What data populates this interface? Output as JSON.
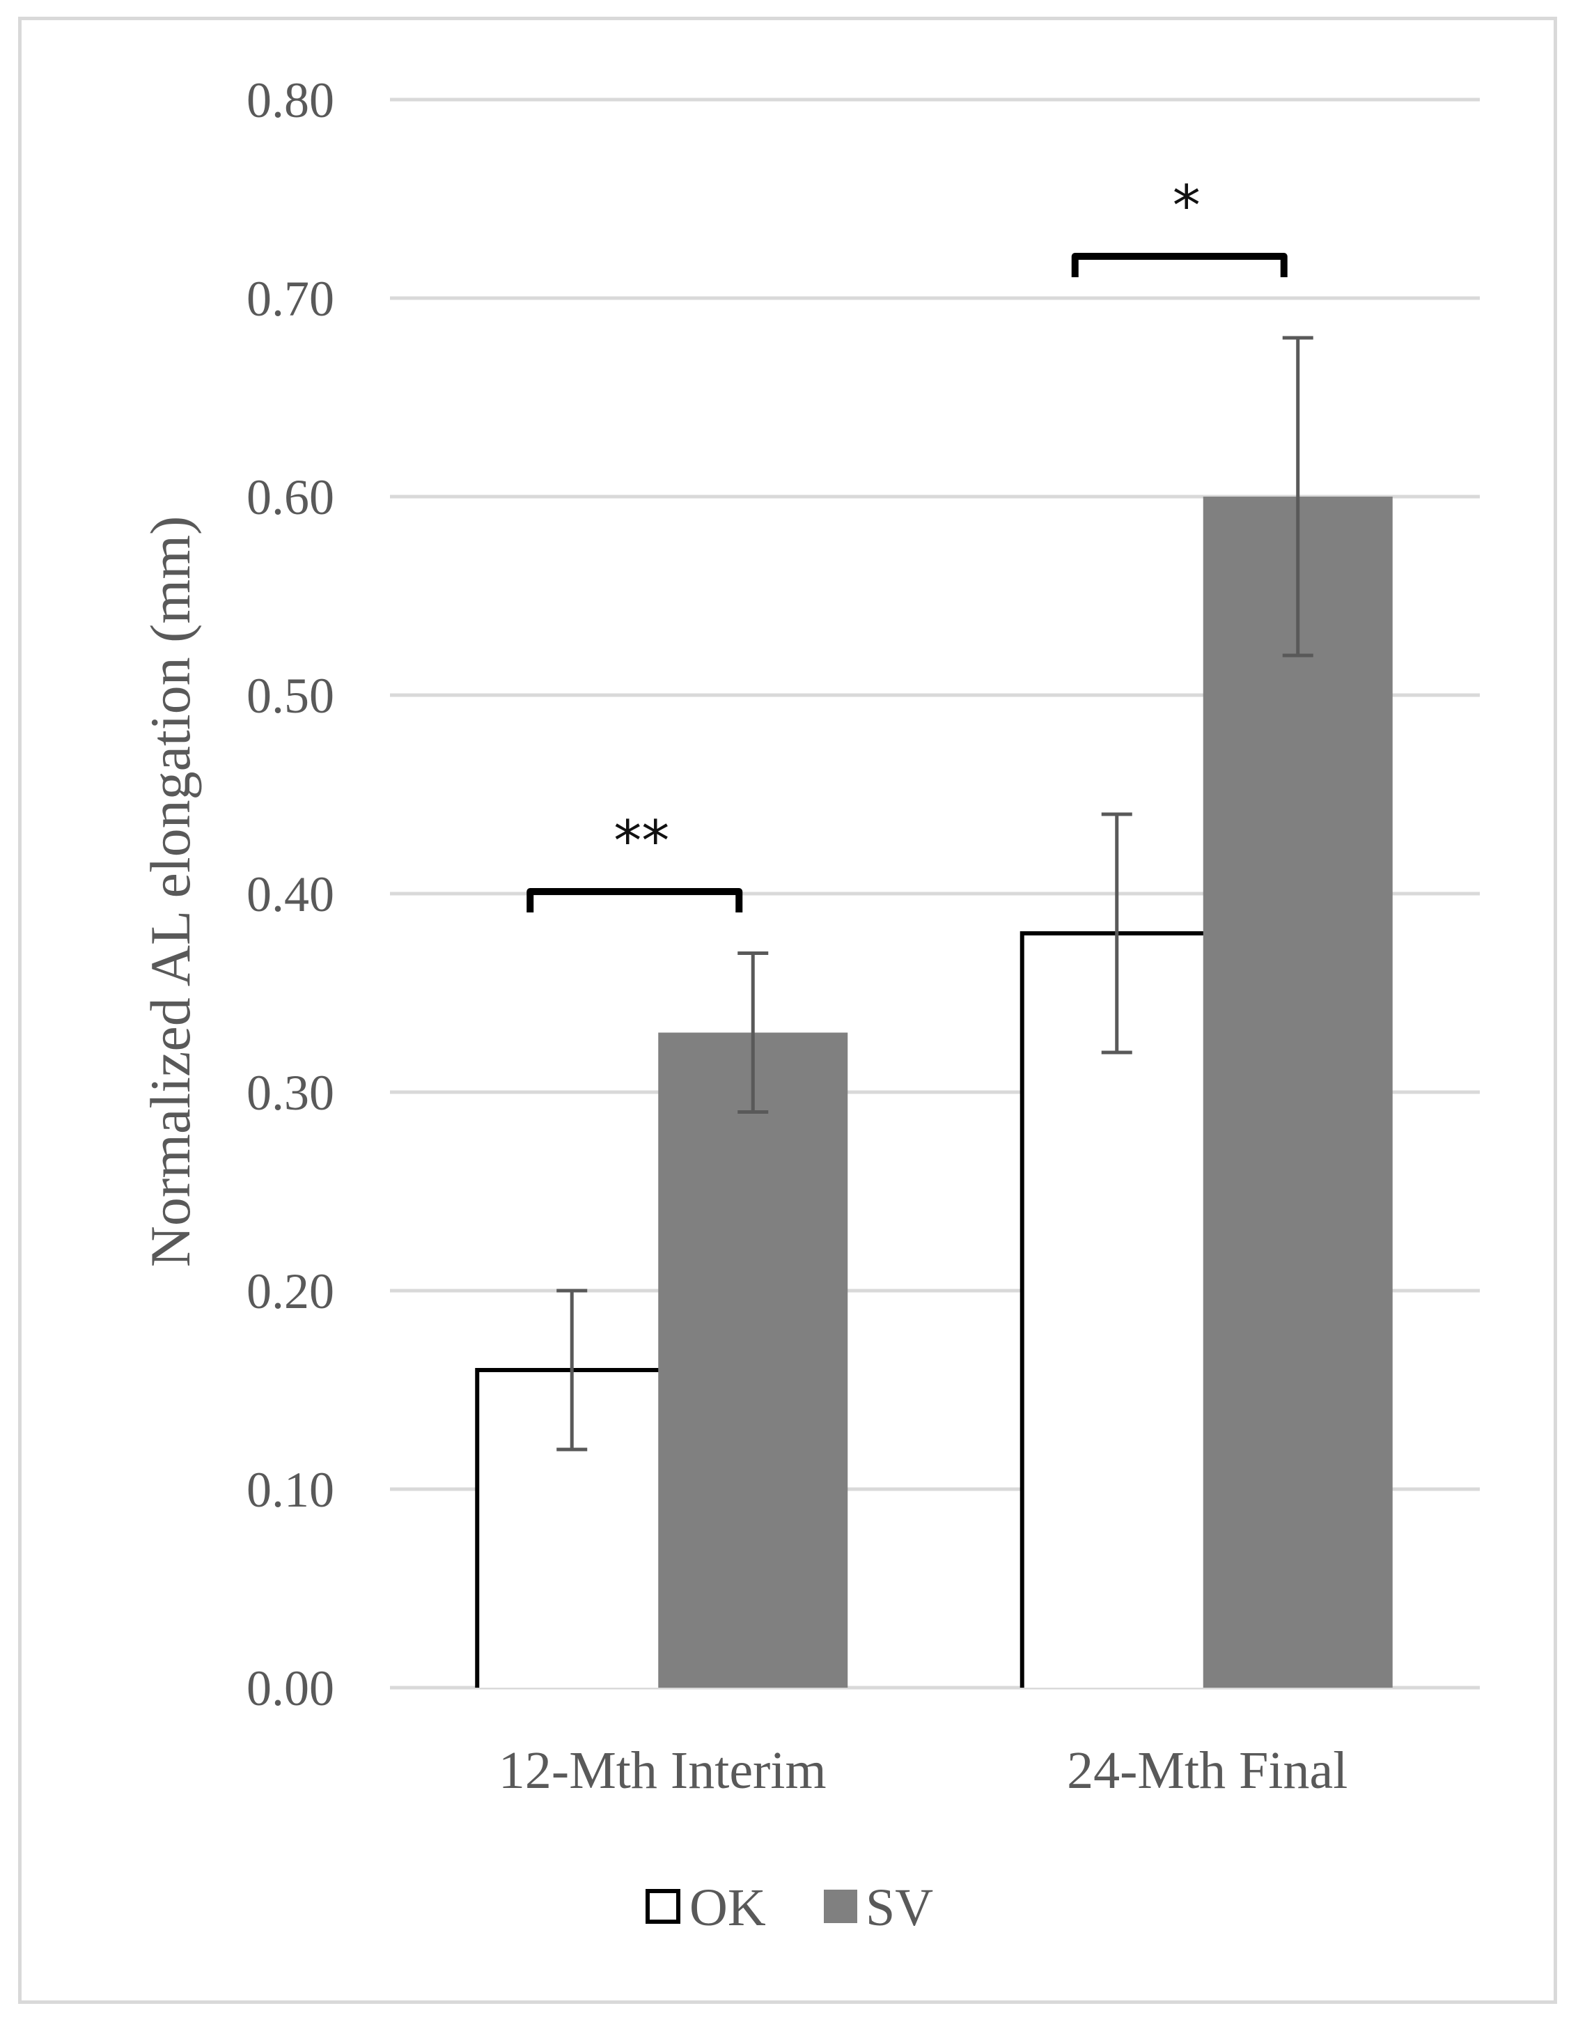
{
  "chart_data": {
    "type": "bar",
    "title": "",
    "xlabel": "",
    "ylabel": "Normalized AL elongation (mm)",
    "ylim": [
      0,
      0.8
    ],
    "yticks": [
      "0.00",
      "0.10",
      "0.20",
      "0.30",
      "0.40",
      "0.50",
      "0.60",
      "0.70",
      "0.80"
    ],
    "grid": true,
    "legend_position": "bottom",
    "categories": [
      "12-Mth Interim",
      "24-Mth Final"
    ],
    "series": [
      {
        "name": "OK",
        "values": [
          0.16,
          0.38
        ],
        "error_low": [
          0.12,
          0.32
        ],
        "error_high": [
          0.2,
          0.44
        ],
        "fill": "#ffffff",
        "stroke": "#000000"
      },
      {
        "name": "SV",
        "values": [
          0.33,
          0.6
        ],
        "error_low": [
          0.29,
          0.52
        ],
        "error_high": [
          0.37,
          0.68
        ],
        "fill": "#808080",
        "stroke": "#808080"
      }
    ],
    "significance": [
      {
        "category": "12-Mth Interim",
        "label": "**",
        "level": 0.4
      },
      {
        "category": "24-Mth Final",
        "label": "*",
        "level": 0.72
      }
    ],
    "colors": {
      "grid": "#d9d9d9",
      "text": "#595959",
      "error_bar": "#595959",
      "bracket": "#000000"
    }
  }
}
